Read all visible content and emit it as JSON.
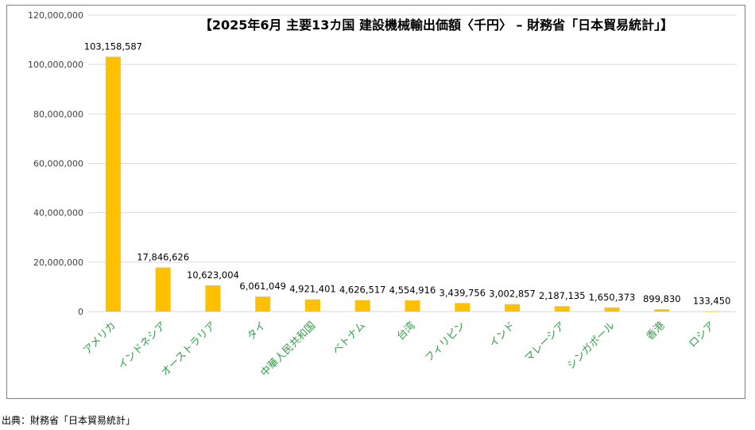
{
  "chart_data": {
    "type": "bar",
    "title": "【2025年6月 主要13カ国 建設機械輸出価額〈千円〉 – 財務省「日本貿易統計」】",
    "categories": [
      "アメリカ",
      "インドネシア",
      "オーストラリア",
      "タイ",
      "中華人民共和国",
      "ベトナム",
      "台湾",
      "フィリピン",
      "インド",
      "マレーシア",
      "シンガポール",
      "香港",
      "ロシア"
    ],
    "values": [
      103158587,
      17846626,
      10623004,
      6061049,
      4921401,
      4626517,
      4554916,
      3439756,
      3002857,
      2187135,
      1650373,
      899830,
      133450
    ],
    "value_labels": [
      "103,158,587",
      "17,846,626",
      "10,623,004",
      "6,061,049",
      "4,921,401",
      "4,626,517",
      "4,554,916",
      "3,439,756",
      "3,002,857",
      "2,187,135",
      "1,650,373",
      "899,830",
      "133,450"
    ],
    "yticks": [
      "0",
      "20,000,000",
      "40,000,000",
      "60,000,000",
      "80,000,000",
      "100,000,000",
      "120,000,000"
    ],
    "ylim": [
      0,
      120000000
    ],
    "grid": true,
    "legend": "none",
    "colors": {
      "bar": "#ffc000",
      "category_label": "#2e9e47",
      "grid": "#d9d9d9"
    }
  },
  "footer": {
    "source": "出典：財務省「日本貿易統計」"
  }
}
